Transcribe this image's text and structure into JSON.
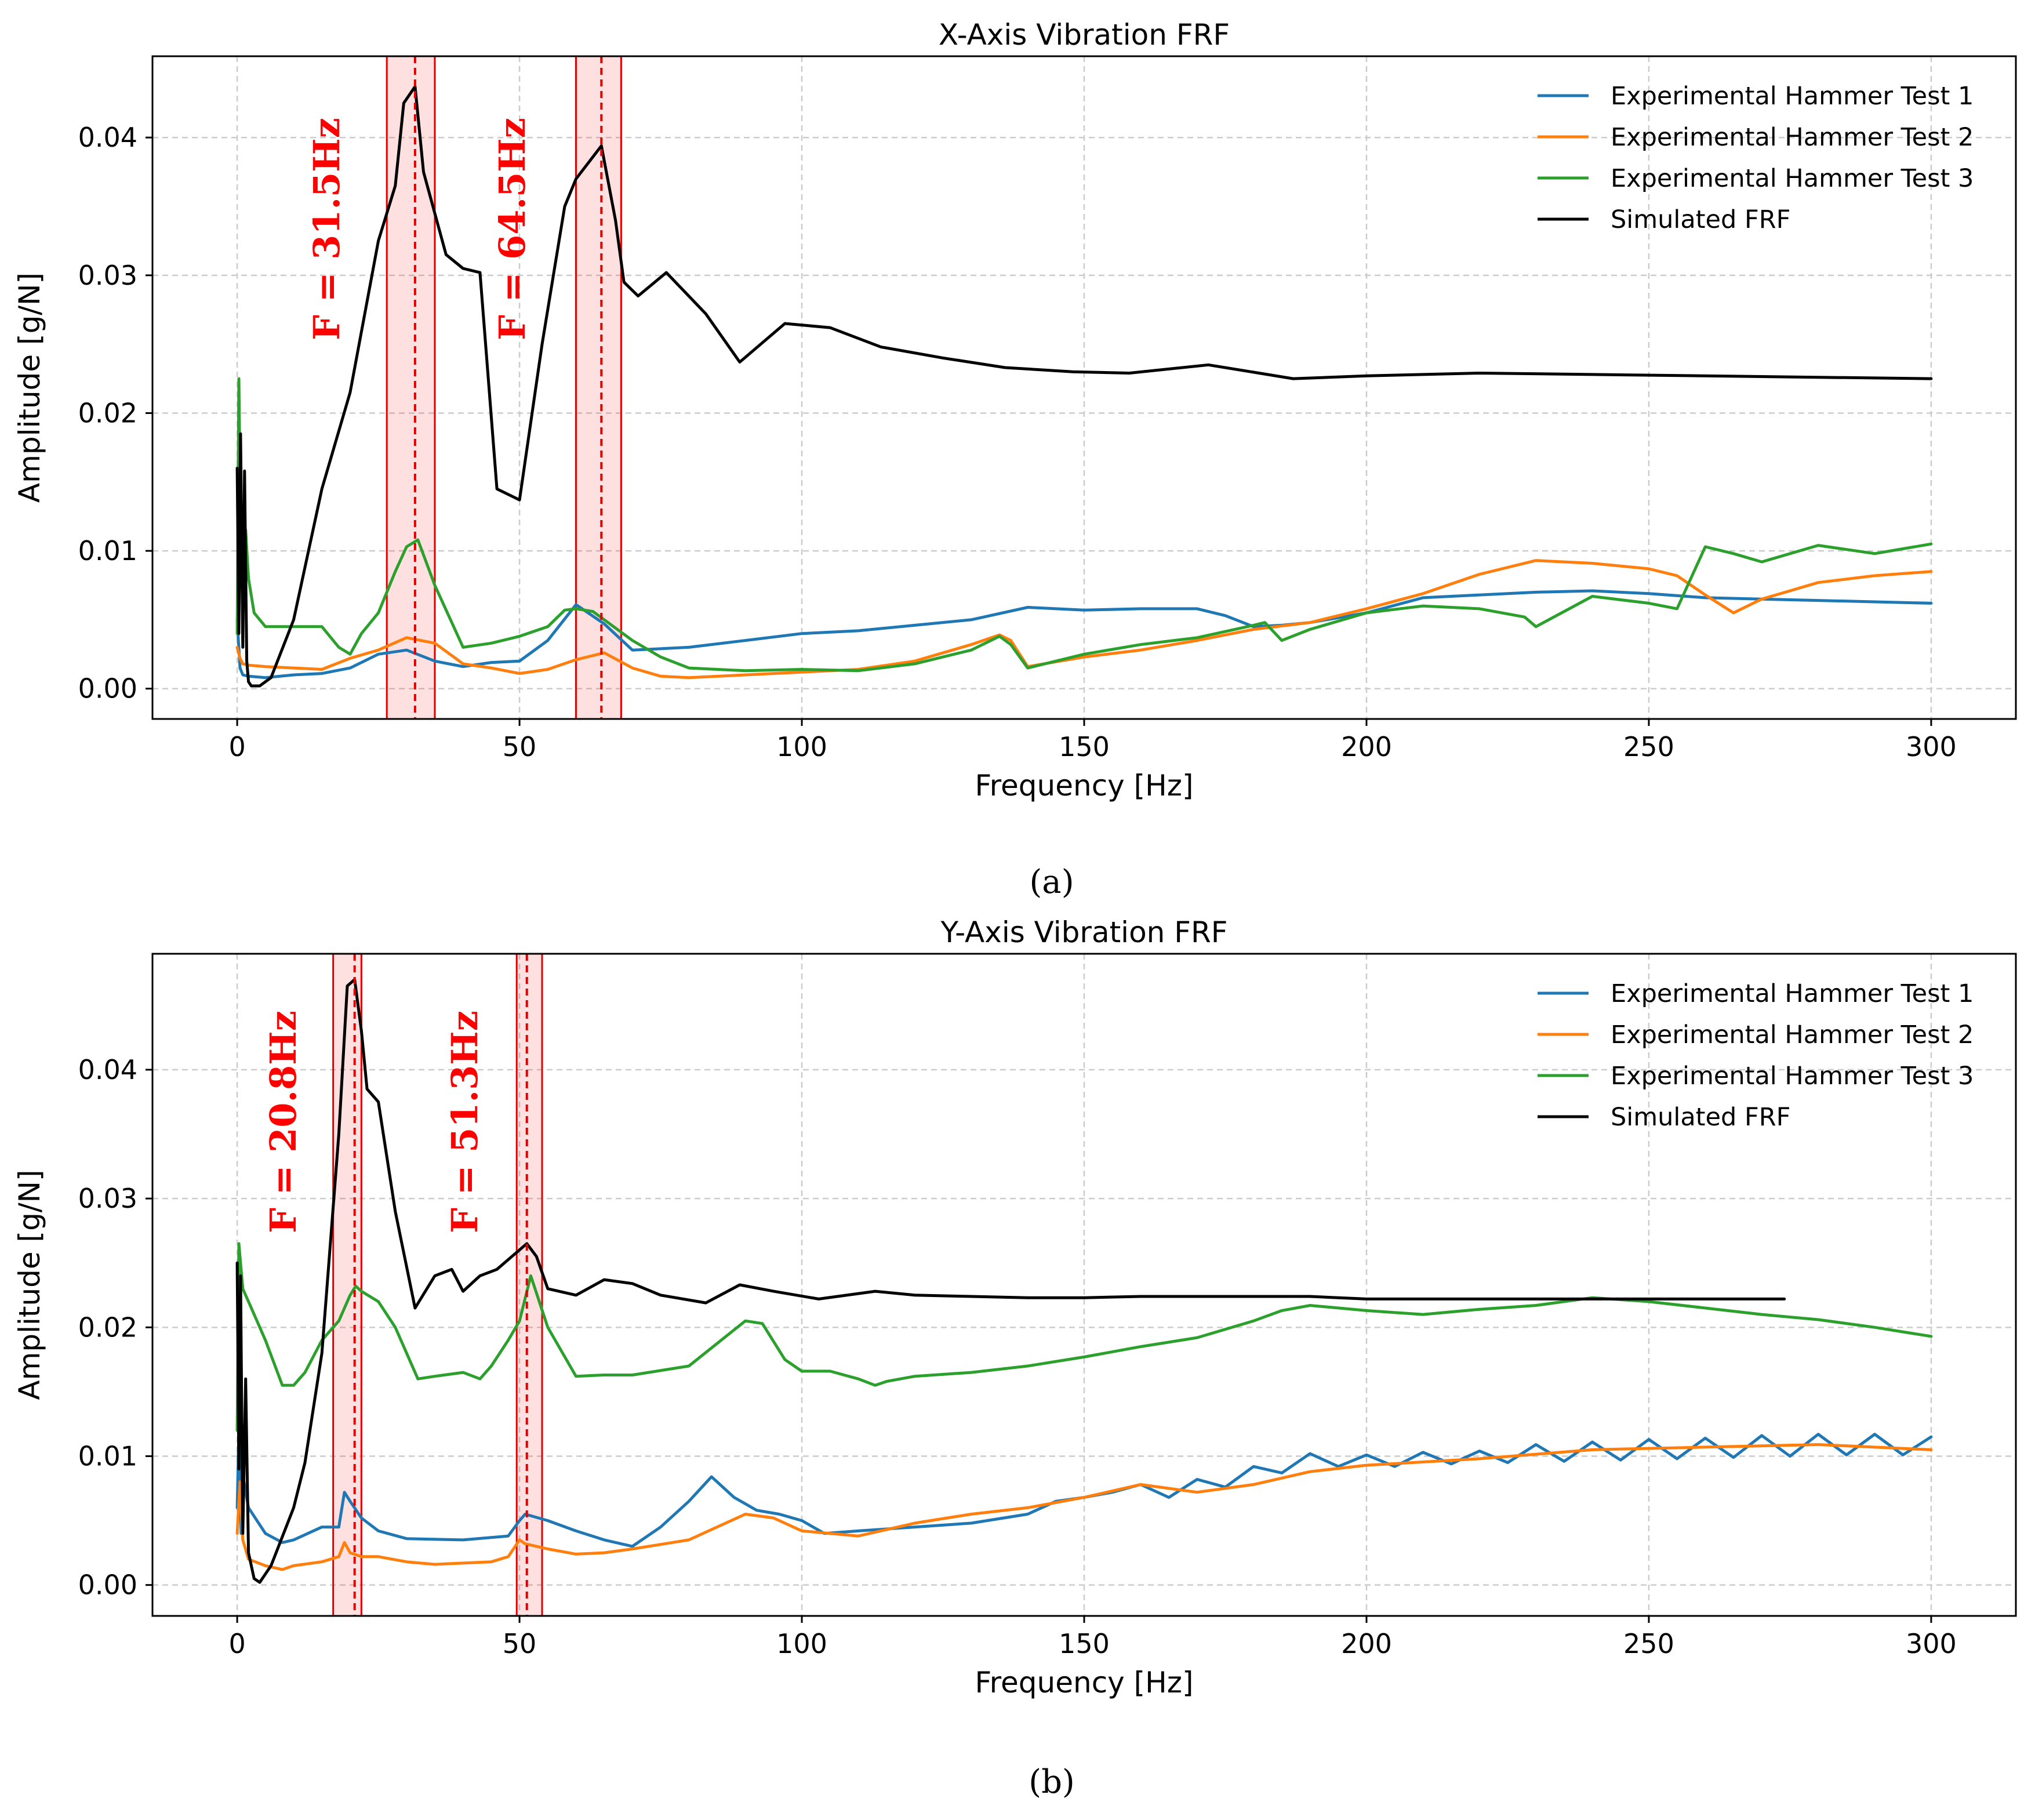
{
  "chart_data": [
    {
      "type": "line",
      "panel": "a",
      "title": "X-Axis Vibration FRF",
      "xlabel": "Frequency [Hz]",
      "ylabel": "Amplitude [g/N]",
      "xlim": [
        -15,
        315
      ],
      "ylim": [
        -0.0022,
        0.0459
      ],
      "xticks": [
        0,
        50,
        100,
        150,
        200,
        250,
        300
      ],
      "xtick_labels": [
        "0",
        "50",
        "100",
        "150",
        "200",
        "250",
        "300"
      ],
      "yticks": [
        0.0,
        0.01,
        0.02,
        0.03,
        0.04
      ],
      "ytick_labels": [
        "0.00",
        "0.01",
        "0.02",
        "0.03",
        "0.04"
      ],
      "grid": true,
      "legend_position": "upper-right",
      "highlights": [
        {
          "center": 31.5,
          "from": 26.5,
          "to": 35,
          "label": "F = 31.5Hz"
        },
        {
          "center": 64.5,
          "from": 60,
          "to": 68,
          "label": "F = 64.5Hz"
        }
      ],
      "series": [
        {
          "name": "Experimental Hammer Test 1",
          "color": "#1f77b4",
          "x": [
            0,
            0.5,
            1,
            2,
            5,
            10,
            15,
            20,
            25,
            30,
            35,
            40,
            45,
            50,
            55,
            60,
            65,
            70,
            80,
            90,
            100,
            110,
            120,
            130,
            140,
            150,
            160,
            170,
            175,
            180,
            185,
            190,
            200,
            210,
            220,
            230,
            240,
            250,
            260,
            270,
            280,
            290,
            300
          ],
          "y": [
            0.005,
            0.0015,
            0.001,
            0.0009,
            0.0008,
            0.001,
            0.0011,
            0.0015,
            0.0025,
            0.0028,
            0.002,
            0.0016,
            0.0019,
            0.002,
            0.0035,
            0.0061,
            0.0047,
            0.0028,
            0.003,
            0.0035,
            0.004,
            0.0042,
            0.0046,
            0.005,
            0.0059,
            0.0057,
            0.0058,
            0.0058,
            0.0053,
            0.0045,
            0.0046,
            0.0048,
            0.0055,
            0.0066,
            0.0068,
            0.007,
            0.0071,
            0.0069,
            0.0066,
            0.0065,
            0.0064,
            0.0063,
            0.0062
          ]
        },
        {
          "name": "Experimental Hammer Test 2",
          "color": "#ff7f0e",
          "x": [
            0,
            0.5,
            1,
            2,
            5,
            10,
            15,
            20,
            25,
            30,
            35,
            40,
            45,
            50,
            55,
            60,
            65,
            70,
            75,
            80,
            90,
            100,
            110,
            120,
            130,
            135,
            137,
            140,
            150,
            160,
            170,
            180,
            190,
            200,
            210,
            220,
            230,
            240,
            250,
            255,
            260,
            265,
            270,
            280,
            290,
            300
          ],
          "y": [
            0.003,
            0.0022,
            0.0018,
            0.0017,
            0.0016,
            0.0015,
            0.0014,
            0.0022,
            0.0028,
            0.0037,
            0.0033,
            0.0018,
            0.0015,
            0.0011,
            0.0014,
            0.0021,
            0.0026,
            0.0015,
            0.0009,
            0.0008,
            0.001,
            0.0012,
            0.0014,
            0.002,
            0.0032,
            0.0039,
            0.0035,
            0.0016,
            0.0023,
            0.0028,
            0.0035,
            0.0043,
            0.0048,
            0.0058,
            0.0069,
            0.0083,
            0.0093,
            0.0091,
            0.0087,
            0.0082,
            0.0068,
            0.0055,
            0.0065,
            0.0077,
            0.0082,
            0.0085
          ]
        },
        {
          "name": "Experimental Hammer Test 3",
          "color": "#2ca02c",
          "x": [
            0,
            0.3,
            0.6,
            1,
            1.5,
            2,
            3,
            5,
            10,
            15,
            18,
            20,
            22,
            25,
            28,
            30,
            32,
            35,
            40,
            45,
            50,
            55,
            58,
            60,
            63,
            65,
            70,
            75,
            80,
            90,
            100,
            110,
            120,
            130,
            135,
            137,
            140,
            150,
            160,
            170,
            180,
            182,
            185,
            190,
            200,
            210,
            220,
            228,
            230,
            240,
            250,
            255,
            260,
            265,
            270,
            280,
            290,
            300
          ],
          "y": [
            0.004,
            0.0225,
            0.012,
            0.006,
            0.0115,
            0.008,
            0.0055,
            0.0045,
            0.0045,
            0.0045,
            0.003,
            0.0025,
            0.004,
            0.0055,
            0.0085,
            0.0103,
            0.0108,
            0.0075,
            0.003,
            0.0033,
            0.0038,
            0.0045,
            0.0057,
            0.0058,
            0.0056,
            0.005,
            0.0035,
            0.0023,
            0.0015,
            0.0013,
            0.0014,
            0.0013,
            0.0018,
            0.0028,
            0.0038,
            0.0032,
            0.0015,
            0.0025,
            0.0032,
            0.0037,
            0.0046,
            0.0048,
            0.0035,
            0.0043,
            0.0055,
            0.006,
            0.0058,
            0.0052,
            0.0045,
            0.0067,
            0.0062,
            0.0058,
            0.0103,
            0.0098,
            0.0092,
            0.0104,
            0.0098,
            0.0105
          ]
        },
        {
          "name": "Simulated FRF",
          "color": "#000000",
          "x": [
            0,
            0.3,
            0.6,
            1,
            1.3,
            1.7,
            2,
            2.5,
            4,
            6,
            10,
            15,
            20,
            25,
            28,
            29.5,
            31.5,
            33,
            37,
            40,
            43,
            46,
            50,
            54,
            58,
            60,
            64.5,
            67,
            68.5,
            71,
            76,
            83,
            89,
            97,
            105,
            114,
            125,
            136,
            148,
            158,
            172,
            187,
            200,
            220,
            240,
            260,
            280,
            300
          ],
          "y": [
            0.016,
            0.004,
            0.0185,
            0.003,
            0.0158,
            0.002,
            0.0005,
            0.0002,
            0.0002,
            0.0008,
            0.005,
            0.0145,
            0.0215,
            0.0325,
            0.0365,
            0.0425,
            0.0437,
            0.0375,
            0.0315,
            0.0305,
            0.0302,
            0.0145,
            0.0137,
            0.025,
            0.035,
            0.037,
            0.0394,
            0.034,
            0.0295,
            0.0285,
            0.0302,
            0.0272,
            0.0237,
            0.0265,
            0.0262,
            0.0248,
            0.024,
            0.0233,
            0.023,
            0.0229,
            0.0235,
            0.0225,
            0.0227,
            0.0229,
            0.0228,
            0.0227,
            0.0226,
            0.0225
          ]
        }
      ]
    },
    {
      "type": "line",
      "panel": "b",
      "title": "Y-Axis Vibration FRF",
      "xlabel": "Frequency [Hz]",
      "ylabel": "Amplitude [g/N]",
      "xlim": [
        -15,
        315
      ],
      "ylim": [
        -0.0024,
        0.049
      ],
      "xticks": [
        0,
        50,
        100,
        150,
        200,
        250,
        300
      ],
      "xtick_labels": [
        "0",
        "50",
        "100",
        "150",
        "200",
        "250",
        "300"
      ],
      "yticks": [
        0.0,
        0.01,
        0.02,
        0.03,
        0.04
      ],
      "ytick_labels": [
        "0.00",
        "0.01",
        "0.02",
        "0.03",
        "0.04"
      ],
      "grid": true,
      "legend_position": "upper-right",
      "highlights": [
        {
          "center": 20.8,
          "from": 17,
          "to": 22,
          "label": "F = 20.8Hz"
        },
        {
          "center": 51.3,
          "from": 49.5,
          "to": 54,
          "label": "F = 51.3Hz"
        }
      ],
      "series": [
        {
          "name": "Experimental Hammer Test 1",
          "color": "#1f77b4",
          "x": [
            0,
            0.3,
            0.7,
            1,
            2,
            5,
            8,
            10,
            15,
            18,
            19,
            20,
            22,
            25,
            30,
            40,
            48,
            50,
            51,
            55,
            60,
            65,
            70,
            75,
            80,
            84,
            88,
            92,
            96,
            100,
            104,
            110,
            120,
            130,
            140,
            145,
            150,
            155,
            160,
            165,
            170,
            175,
            180,
            185,
            190,
            195,
            200,
            205,
            210,
            215,
            220,
            225,
            230,
            235,
            240,
            245,
            250,
            255,
            260,
            265,
            270,
            275,
            280,
            285,
            290,
            295,
            300
          ],
          "y": [
            0.006,
            0.012,
            0.004,
            0.0085,
            0.006,
            0.004,
            0.0033,
            0.0035,
            0.0045,
            0.0045,
            0.0072,
            0.0065,
            0.0052,
            0.0042,
            0.0036,
            0.0035,
            0.0038,
            0.005,
            0.0055,
            0.005,
            0.0042,
            0.0035,
            0.003,
            0.0045,
            0.0065,
            0.0084,
            0.0068,
            0.0058,
            0.0055,
            0.005,
            0.004,
            0.0042,
            0.0045,
            0.0048,
            0.0055,
            0.0065,
            0.0068,
            0.0072,
            0.0078,
            0.0068,
            0.0082,
            0.0076,
            0.0092,
            0.0087,
            0.0102,
            0.0092,
            0.0101,
            0.0092,
            0.0103,
            0.0094,
            0.0104,
            0.0095,
            0.0109,
            0.0096,
            0.0111,
            0.0097,
            0.0113,
            0.0098,
            0.0114,
            0.0099,
            0.0116,
            0.01,
            0.0117,
            0.0101,
            0.0117,
            0.0101,
            0.0115
          ]
        },
        {
          "name": "Experimental Hammer Test 2",
          "color": "#ff7f0e",
          "x": [
            0,
            0.5,
            1,
            2,
            5,
            8,
            10,
            15,
            18,
            19,
            20,
            22,
            25,
            30,
            35,
            40,
            45,
            48,
            50,
            51,
            55,
            60,
            65,
            70,
            80,
            90,
            95,
            100,
            105,
            110,
            120,
            130,
            140,
            150,
            160,
            170,
            180,
            190,
            200,
            220,
            240,
            260,
            280,
            300
          ],
          "y": [
            0.004,
            0.008,
            0.0035,
            0.002,
            0.0015,
            0.0012,
            0.0015,
            0.0018,
            0.0022,
            0.0033,
            0.0025,
            0.0022,
            0.0022,
            0.0018,
            0.0016,
            0.0017,
            0.0018,
            0.0022,
            0.0035,
            0.0032,
            0.0028,
            0.0024,
            0.0025,
            0.0028,
            0.0035,
            0.0055,
            0.0052,
            0.0042,
            0.004,
            0.0038,
            0.0048,
            0.0055,
            0.006,
            0.0068,
            0.0078,
            0.0072,
            0.0078,
            0.0088,
            0.0093,
            0.0098,
            0.0105,
            0.0107,
            0.0109,
            0.0105
          ]
        },
        {
          "name": "Experimental Hammer Test 3",
          "color": "#2ca02c",
          "x": [
            0,
            0.3,
            0.6,
            1,
            2,
            5,
            8,
            10,
            12,
            15,
            18,
            20,
            21,
            22,
            25,
            28,
            32,
            35,
            40,
            43,
            45,
            48,
            50,
            52,
            55,
            60,
            65,
            70,
            80,
            90,
            93,
            97,
            100,
            105,
            110,
            113,
            115,
            120,
            130,
            140,
            150,
            160,
            170,
            180,
            185,
            190,
            200,
            210,
            220,
            230,
            240,
            250,
            260,
            270,
            280,
            290,
            300
          ],
          "y": [
            0.012,
            0.0265,
            0.025,
            0.023,
            0.022,
            0.019,
            0.0155,
            0.0155,
            0.0165,
            0.019,
            0.0205,
            0.0225,
            0.0232,
            0.0228,
            0.022,
            0.02,
            0.016,
            0.0162,
            0.0165,
            0.016,
            0.017,
            0.019,
            0.0205,
            0.024,
            0.02,
            0.0162,
            0.0163,
            0.0163,
            0.017,
            0.0205,
            0.0203,
            0.0175,
            0.0166,
            0.0166,
            0.016,
            0.0155,
            0.0158,
            0.0162,
            0.0165,
            0.017,
            0.0177,
            0.0185,
            0.0192,
            0.0205,
            0.0213,
            0.0217,
            0.0213,
            0.021,
            0.0214,
            0.0217,
            0.0223,
            0.022,
            0.0215,
            0.021,
            0.0206,
            0.02,
            0.0193
          ]
        },
        {
          "name": "Simulated FRF",
          "color": "#000000",
          "x": [
            0,
            0.3,
            0.6,
            1,
            1.5,
            2,
            3,
            4,
            6,
            10,
            12,
            15,
            18,
            19.5,
            20.8,
            22,
            23,
            25,
            28,
            31.5,
            35,
            38,
            40,
            43,
            46,
            51.3,
            53,
            55,
            60,
            65,
            70,
            75,
            83,
            89,
            95,
            103,
            113,
            120,
            130,
            140,
            150,
            160,
            170,
            180,
            190,
            200,
            220,
            240,
            260,
            274
          ],
          "y": [
            0.025,
            0.009,
            0.024,
            0.004,
            0.016,
            0.0025,
            0.0005,
            0.0002,
            0.0015,
            0.006,
            0.0095,
            0.018,
            0.035,
            0.0465,
            0.047,
            0.043,
            0.0385,
            0.0375,
            0.029,
            0.0215,
            0.024,
            0.0245,
            0.0228,
            0.024,
            0.0245,
            0.0265,
            0.0255,
            0.023,
            0.0225,
            0.0237,
            0.0234,
            0.0225,
            0.0219,
            0.0233,
            0.0228,
            0.0222,
            0.0228,
            0.0225,
            0.0224,
            0.0223,
            0.0223,
            0.0224,
            0.0224,
            0.0224,
            0.0224,
            0.0222,
            0.0222,
            0.0222,
            0.0222,
            0.0222
          ]
        }
      ]
    }
  ],
  "captions": [
    "(a)",
    "(b)"
  ]
}
